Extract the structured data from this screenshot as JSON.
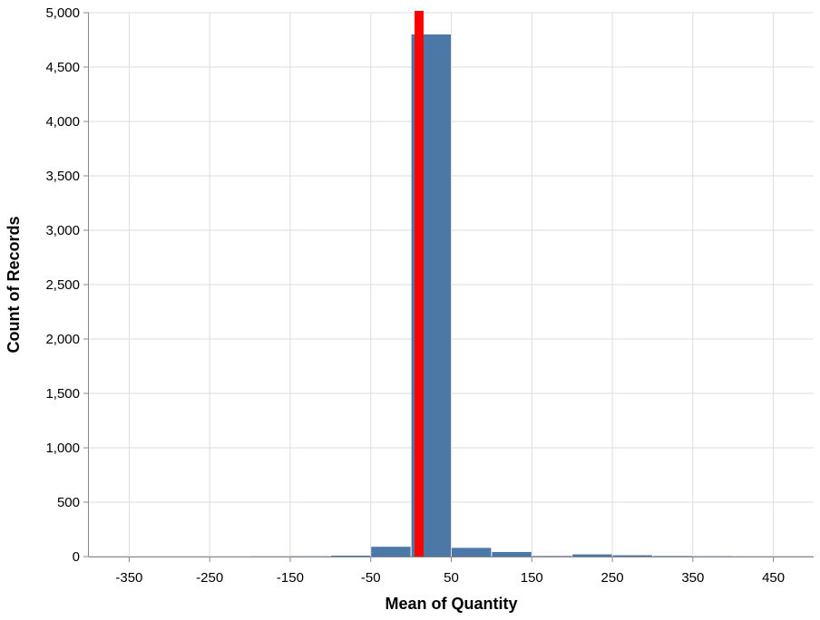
{
  "chart_data": {
    "type": "bar",
    "title": "",
    "xlabel": "Mean of Quantity",
    "ylabel": "Count of Records",
    "xlim": [
      -400,
      500
    ],
    "ylim": [
      0,
      5000
    ],
    "x_ticks": [
      -350,
      -250,
      -150,
      -50,
      50,
      150,
      250,
      350,
      450
    ],
    "x_tick_labels": [
      "-350",
      "-250",
      "-150",
      "-50",
      "50",
      "150",
      "250",
      "350",
      "450"
    ],
    "y_ticks": [
      0,
      500,
      1000,
      1500,
      2000,
      2500,
      3000,
      3500,
      4000,
      4500,
      5000
    ],
    "y_tick_labels": [
      "0",
      "500",
      "1,000",
      "1,500",
      "2,000",
      "2,500",
      "3,000",
      "3,500",
      "4,000",
      "4,500",
      "5,000"
    ],
    "grid": true,
    "bins": [
      {
        "x0": -400,
        "x1": -350,
        "count": 1
      },
      {
        "x0": -350,
        "x1": -300,
        "count": 1
      },
      {
        "x0": -300,
        "x1": -250,
        "count": 1
      },
      {
        "x0": -250,
        "x1": -200,
        "count": 1
      },
      {
        "x0": -200,
        "x1": -150,
        "count": 2
      },
      {
        "x0": -150,
        "x1": -100,
        "count": 3
      },
      {
        "x0": -100,
        "x1": -50,
        "count": 8
      },
      {
        "x0": -50,
        "x1": 0,
        "count": 90
      },
      {
        "x0": 0,
        "x1": 50,
        "count": 4800
      },
      {
        "x0": 50,
        "x1": 100,
        "count": 80
      },
      {
        "x0": 100,
        "x1": 150,
        "count": 42
      },
      {
        "x0": 150,
        "x1": 200,
        "count": 5
      },
      {
        "x0": 200,
        "x1": 250,
        "count": 20
      },
      {
        "x0": 250,
        "x1": 300,
        "count": 12
      },
      {
        "x0": 300,
        "x1": 350,
        "count": 5
      },
      {
        "x0": 350,
        "x1": 400,
        "count": 3
      },
      {
        "x0": 400,
        "x1": 450,
        "count": 2
      },
      {
        "x0": 450,
        "x1": 500,
        "count": 2
      }
    ],
    "rule": {
      "x": 10,
      "color": "#ff0000"
    },
    "colors": {
      "bar": "#4c78a8",
      "rule": "#ff0000",
      "grid": "#dddddd"
    }
  }
}
